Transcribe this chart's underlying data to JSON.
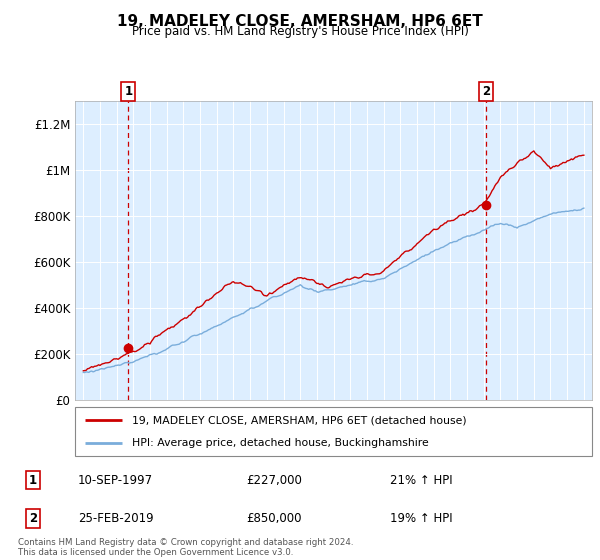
{
  "title": "19, MADELEY CLOSE, AMERSHAM, HP6 6ET",
  "subtitle": "Price paid vs. HM Land Registry's House Price Index (HPI)",
  "sale1_date": "10-SEP-1997",
  "sale1_price": 227000,
  "sale1_hpi": "21% ↑ HPI",
  "sale2_date": "25-FEB-2019",
  "sale2_price": 850000,
  "sale2_hpi": "19% ↑ HPI",
  "legend_line1": "19, MADELEY CLOSE, AMERSHAM, HP6 6ET (detached house)",
  "legend_line2": "HPI: Average price, detached house, Buckinghamshire",
  "footer": "Contains HM Land Registry data © Crown copyright and database right 2024.\nThis data is licensed under the Open Government Licence v3.0.",
  "red_color": "#cc0000",
  "blue_color": "#7aaddb",
  "plot_bg_color": "#ddeeff",
  "sale1_year": 1997.7,
  "sale2_year": 2019.15,
  "ylim_min": 0,
  "ylim_max": 1300000,
  "xlim_min": 1994.5,
  "xlim_max": 2025.5,
  "yticks": [
    0,
    200000,
    400000,
    600000,
    800000,
    1000000,
    1200000
  ],
  "ytick_labels": [
    "£0",
    "£200K",
    "£400K",
    "£600K",
    "£800K",
    "£1M",
    "£1.2M"
  ],
  "xticks": [
    1995,
    1996,
    1997,
    1998,
    1999,
    2000,
    2001,
    2002,
    2003,
    2004,
    2005,
    2006,
    2007,
    2008,
    2009,
    2010,
    2011,
    2012,
    2013,
    2014,
    2015,
    2016,
    2017,
    2018,
    2019,
    2020,
    2021,
    2022,
    2023,
    2024,
    2025
  ]
}
